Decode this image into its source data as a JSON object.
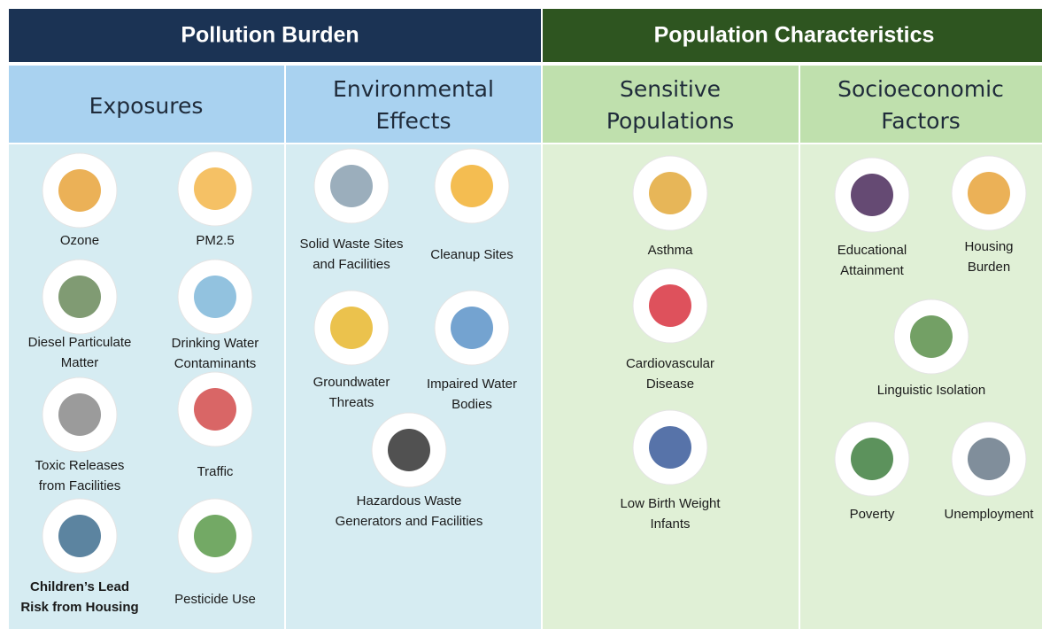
{
  "header": {
    "left": "Pollution Burden",
    "right": "Population Characteristics"
  },
  "sections": [
    {
      "title": [
        "Exposures"
      ],
      "items": [
        {
          "label": [
            "Ozone"
          ]
        },
        {
          "label": [
            "PM2.5"
          ]
        },
        {
          "label": [
            "Diesel Particulate",
            "Matter"
          ]
        },
        {
          "label": [
            "Drinking Water",
            "Contaminants"
          ]
        },
        {
          "label": [
            "Toxic Releases",
            "from Facilities"
          ]
        },
        {
          "label": [
            "Traffic"
          ]
        },
        {
          "label": [
            "Children’s Lead",
            "Risk from Housing"
          ]
        },
        {
          "label": [
            "Pesticide Use"
          ]
        }
      ]
    },
    {
      "title": [
        "Environmental",
        "Effects"
      ],
      "items": [
        {
          "label": [
            "Solid Waste Sites",
            "and Facilities"
          ]
        },
        {
          "label": [
            "Cleanup Sites"
          ]
        },
        {
          "label": [
            "Groundwater",
            "Threats"
          ]
        },
        {
          "label": [
            "Impaired Water",
            "Bodies"
          ]
        },
        {
          "label": [
            "Hazardous Waste",
            "Generators and Facilities"
          ]
        }
      ]
    },
    {
      "title": [
        "Sensitive",
        "Populations"
      ],
      "items": [
        {
          "label": [
            "Asthma"
          ]
        },
        {
          "label": [
            "Cardiovascular",
            "Disease"
          ]
        },
        {
          "label": [
            "Low Birth Weight",
            "Infants"
          ]
        }
      ]
    },
    {
      "title": [
        "Socioeconomic",
        "Factors"
      ],
      "items": [
        {
          "label": [
            "Educational",
            "Attainment"
          ]
        },
        {
          "label": [
            "Housing",
            "Burden"
          ]
        },
        {
          "label": [
            "Linguistic Isolation"
          ]
        },
        {
          "label": [
            "Poverty"
          ]
        },
        {
          "label": [
            "Unemployment"
          ]
        }
      ]
    }
  ]
}
